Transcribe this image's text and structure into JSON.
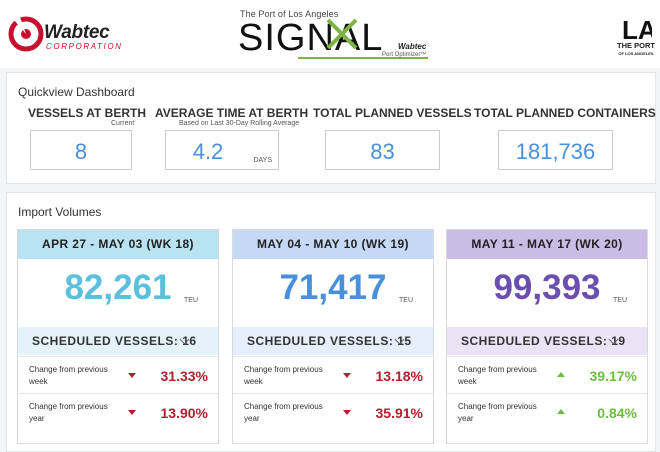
{
  "header": {
    "wabtec_name": "Wabtec",
    "wabtec_corp": "CORPORATION",
    "signal_top": "The Port of Los Angeles",
    "signal_word": "SIGNAL",
    "signal_sub_brand": "Wabtec",
    "signal_sub_product": "Port Optimizer™",
    "la_mark": "LA",
    "la_port": "THE PORT",
    "la_sub": "OF LOS ANGELES"
  },
  "quickview": {
    "title": "Quickview Dashboard",
    "kpis": [
      {
        "label": "VESSELS AT BERTH",
        "sub": "Current",
        "value": "8",
        "unit": ""
      },
      {
        "label": "AVERAGE TIME AT BERTH",
        "sub": "Based on Last 30-Day Rolling Average",
        "value": "4.2",
        "unit": "DAYS"
      },
      {
        "label": "TOTAL PLANNED VESSELS",
        "sub": "",
        "value": "83",
        "unit": ""
      },
      {
        "label": "TOTAL PLANNED CONTAINERS",
        "sub": "",
        "value": "181,736",
        "unit": ""
      }
    ]
  },
  "imports": {
    "title": "Import Volumes",
    "weeks": [
      {
        "header": "APR 27 - MAY 03 (WK 18)",
        "total": "82,261",
        "unit": "TEU",
        "scheduled": "SCHEDULED VESSELS: 16",
        "rows": [
          {
            "label": "Change from previous week",
            "direction": "down",
            "pct": "31.33%"
          },
          {
            "label": "Change from previous year",
            "direction": "down",
            "pct": "13.90%"
          }
        ]
      },
      {
        "header": "MAY 04 - MAY 10 (WK 19)",
        "total": "71,417",
        "unit": "TEU",
        "scheduled": "SCHEDULED VESSELS: 15",
        "rows": [
          {
            "label": "Change from previous week",
            "direction": "down",
            "pct": "13.18%"
          },
          {
            "label": "Change from previous year",
            "direction": "down",
            "pct": "35.91%"
          }
        ]
      },
      {
        "header": "MAY 11 - MAY 17 (WK 20)",
        "total": "99,393",
        "unit": "TEU",
        "scheduled": "SCHEDULED VESSELS: 19",
        "rows": [
          {
            "label": "Change from previous week",
            "direction": "up",
            "pct": "39.17%"
          },
          {
            "label": "Change from previous year",
            "direction": "up",
            "pct": "0.84%"
          }
        ]
      }
    ]
  },
  "colors": {
    "wabtec_red": "#c8102e",
    "signal_green": "#7cb342",
    "kpi_blue": "#4a90d9",
    "wk18_header": "#b9e3f2",
    "wk18_sched": "#e3f3f9",
    "wk18_total": "#5bc0de",
    "wk19_header": "#c5d9f5",
    "wk19_sched": "#e6eefb",
    "wk19_total": "#4a8fdc",
    "wk20_header": "#c9bde6",
    "wk20_sched": "#e9e3f5",
    "wk20_total": "#6a4fb0",
    "down": "#b21f2d",
    "up": "#6abf40"
  }
}
